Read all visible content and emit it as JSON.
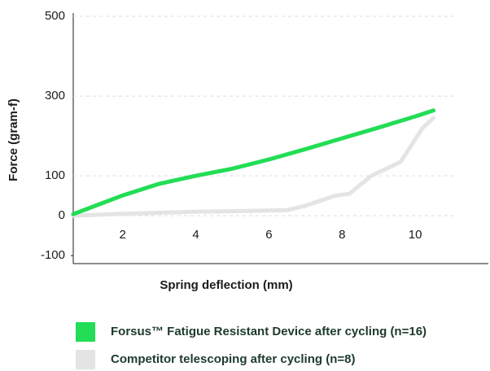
{
  "chart_data": {
    "type": "line",
    "x_label": "Spring deflection (mm)",
    "y_label": "Force (gram-f)",
    "xlim": [
      0.65,
      12
    ],
    "ylim": [
      -120,
      500
    ],
    "xticks": [
      2,
      4,
      6,
      8,
      10
    ],
    "yticks": [
      500,
      300,
      100,
      0,
      -100
    ],
    "grid": true,
    "legend": "bottom",
    "series": [
      {
        "name": "Forsus™ Fatigue Resistant Device after cycling (n=16)",
        "color": "#22dd55",
        "x": [
          0.65,
          2,
          3,
          4,
          5,
          6,
          7,
          8,
          9,
          10,
          10.5
        ],
        "values": [
          4,
          51,
          80,
          100,
          118,
          141,
          167,
          194,
          221,
          249,
          264
        ]
      },
      {
        "name": "Competitor telescoping after cycling (n=8)",
        "color": "#e4e4e4",
        "x": [
          0.65,
          2,
          4,
          6,
          6.5,
          7,
          7.8,
          8.2,
          8.8,
          9.6,
          10.2,
          10.5
        ],
        "values": [
          0,
          5,
          10,
          13,
          14,
          25,
          50,
          55,
          100,
          135,
          220,
          245
        ]
      }
    ]
  }
}
